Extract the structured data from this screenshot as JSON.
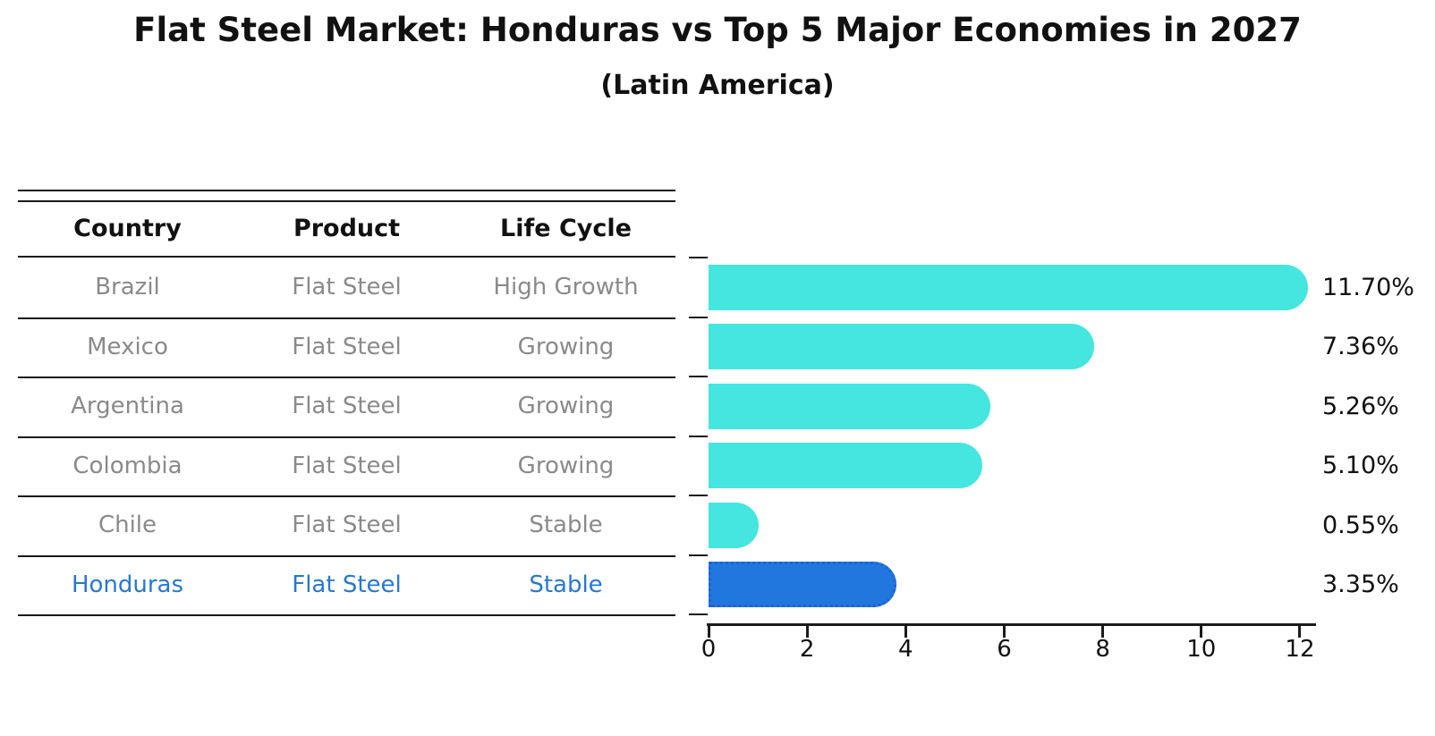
{
  "title": "Flat Steel Market: Honduras vs Top 5 Major Economies in 2027",
  "subtitle": "(Latin America)",
  "table": {
    "headers": [
      "Country",
      "Product",
      "Life Cycle"
    ],
    "rows": [
      {
        "country": "Brazil",
        "product": "Flat Steel",
        "life_cycle": "High Growth",
        "highlight": false
      },
      {
        "country": "Mexico",
        "product": "Flat Steel",
        "life_cycle": "Growing",
        "highlight": false
      },
      {
        "country": "Argentina",
        "product": "Flat Steel",
        "life_cycle": "Growing",
        "highlight": false
      },
      {
        "country": "Colombia",
        "product": "Flat Steel",
        "life_cycle": "Growing",
        "highlight": false
      },
      {
        "country": "Chile",
        "product": "Flat Steel",
        "life_cycle": "Stable",
        "highlight": false
      },
      {
        "country": "Honduras",
        "product": "Flat Steel",
        "life_cycle": "Stable",
        "highlight": true
      }
    ]
  },
  "chart_data": {
    "type": "bar",
    "orientation": "horizontal",
    "title": "Flat Steel Market: Honduras vs Top 5 Major Economies in 2027",
    "subtitle": "(Latin America)",
    "categories": [
      "Brazil",
      "Mexico",
      "Argentina",
      "Colombia",
      "Chile",
      "Honduras"
    ],
    "values": [
      11.7,
      7.36,
      5.26,
      5.1,
      0.55,
      3.35
    ],
    "value_labels": [
      "11.70%",
      "7.36%",
      "5.26%",
      "5.10%",
      "0.55%",
      "3.35%"
    ],
    "x_ticks": [
      "0",
      "2",
      "4",
      "6",
      "8",
      "10",
      "12"
    ],
    "x_tick_values": [
      0,
      2,
      4,
      6,
      8,
      10,
      12
    ],
    "xlim": [
      0,
      12
    ],
    "grid": false,
    "legend": false,
    "highlight_category": "Honduras"
  },
  "colors": {
    "bar_default": "#44E6DF",
    "bar_highlight": "#2277DF",
    "bar_highlight_border": "#1b63d4",
    "highlight_text": "#2878CF",
    "cell_text": "#8a8a8a",
    "header_text": "#111111",
    "line": "#1a1a1a"
  }
}
